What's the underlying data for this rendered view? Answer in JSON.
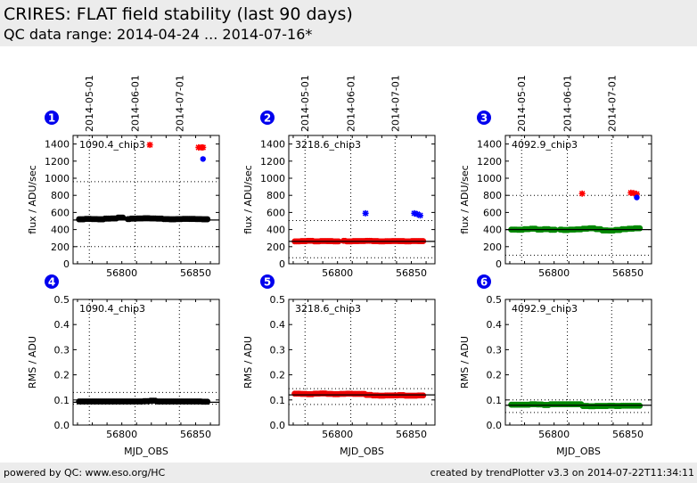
{
  "header": {
    "title": "CRIRES: FLAT field stability (last 90 days)",
    "subtitle": "QC data range: 2014-04-24 ... 2014-07-16*"
  },
  "footer": {
    "left": "powered by QC: www.eso.org/HC",
    "right": "created by trendPlotter v3.3 on 2014-07-22T11:34:11"
  },
  "colors": {
    "badge": "#0000ee",
    "black_series": "#000000",
    "red_series": "#ee0000",
    "green_series": "#008800",
    "outlier_red": "#ff0000",
    "outlier_blue": "#0000ff"
  },
  "chart_data": [
    {
      "id": 1,
      "type": "scatter",
      "label": "1090.4_chip3",
      "xlabel": "",
      "ylabel": "flux / ADU/sec",
      "xlim": [
        56767,
        56866
      ],
      "ylim": [
        0,
        1500
      ],
      "xticks": [
        56800,
        56850
      ],
      "yticks": [
        0,
        200,
        400,
        600,
        800,
        1000,
        1200,
        1400
      ],
      "date_ticks": [
        {
          "x": 56778,
          "label": "2014-05-01"
        },
        {
          "x": 56809,
          "label": "2014-06-01"
        },
        {
          "x": 56839,
          "label": "2014-07-01"
        }
      ],
      "color": "#000000",
      "series_x": [
        56771,
        56858
      ],
      "series_y": [
        520,
        525,
        522,
        520,
        528,
        530,
        540,
        522,
        528,
        530,
        532,
        530,
        528,
        522,
        520,
        522,
        525,
        524,
        522,
        520
      ],
      "reference": 512,
      "limits": [
        200,
        960
      ],
      "outliers": [
        {
          "x": 56819,
          "y": 1390,
          "marker": "star",
          "color": "#ff0000"
        },
        {
          "x": 56852,
          "y": 1360,
          "marker": "star",
          "color": "#ff0000"
        },
        {
          "x": 56854,
          "y": 1360,
          "marker": "star",
          "color": "#ff0000"
        },
        {
          "x": 56855,
          "y": 1360,
          "marker": "star",
          "color": "#ff0000"
        },
        {
          "x": 56855,
          "y": 1225,
          "marker": "dot",
          "color": "#0000ff"
        }
      ]
    },
    {
      "id": 2,
      "type": "scatter",
      "label": "3218.6_chip3",
      "xlabel": "",
      "ylabel": "flux / ADU/sec",
      "xlim": [
        56767,
        56866
      ],
      "ylim": [
        0,
        1500
      ],
      "xticks": [
        56800,
        56850
      ],
      "yticks": [
        0,
        200,
        400,
        600,
        800,
        1000,
        1200,
        1400
      ],
      "date_ticks": [
        {
          "x": 56778,
          "label": "2014-05-01"
        },
        {
          "x": 56809,
          "label": "2014-06-01"
        },
        {
          "x": 56839,
          "label": "2014-07-01"
        }
      ],
      "color": "#ee0000",
      "series_x": [
        56771,
        56858
      ],
      "series_y": [
        262,
        265,
        268,
        262,
        266,
        265,
        262,
        268,
        262,
        265,
        266,
        268,
        265,
        262,
        264,
        266,
        265,
        262,
        266,
        265
      ],
      "reference": 262,
      "limits": [
        70,
        505
      ],
      "outliers": [
        {
          "x": 56819,
          "y": 590,
          "marker": "star",
          "color": "#0000ff"
        },
        {
          "x": 56852,
          "y": 590,
          "marker": "star",
          "color": "#0000ff"
        },
        {
          "x": 56854,
          "y": 580,
          "marker": "star",
          "color": "#0000ff"
        },
        {
          "x": 56856,
          "y": 565,
          "marker": "star",
          "color": "#0000ff"
        }
      ]
    },
    {
      "id": 3,
      "type": "scatter",
      "label": "4092.9_chip3",
      "xlabel": "",
      "ylabel": "flux / ADU/sec",
      "xlim": [
        56767,
        56866
      ],
      "ylim": [
        0,
        1500
      ],
      "xticks": [
        56800,
        56850
      ],
      "yticks": [
        0,
        200,
        400,
        600,
        800,
        1000,
        1200,
        1400
      ],
      "date_ticks": [
        {
          "x": 56778,
          "label": "2014-05-01"
        },
        {
          "x": 56809,
          "label": "2014-06-01"
        },
        {
          "x": 56839,
          "label": "2014-07-01"
        }
      ],
      "color": "#008800",
      "series_x": [
        56771,
        56858
      ],
      "series_y": [
        400,
        398,
        405,
        410,
        400,
        405,
        398,
        400,
        395,
        400,
        402,
        410,
        415,
        405,
        390,
        388,
        395,
        405,
        410,
        415
      ],
      "reference": 400,
      "limits": [
        100,
        800
      ],
      "outliers": [
        {
          "x": 56819,
          "y": 820,
          "marker": "star",
          "color": "#ff0000"
        },
        {
          "x": 56852,
          "y": 830,
          "marker": "star",
          "color": "#ff0000"
        },
        {
          "x": 56854,
          "y": 825,
          "marker": "star",
          "color": "#ff0000"
        },
        {
          "x": 56856,
          "y": 815,
          "marker": "star",
          "color": "#ff0000"
        },
        {
          "x": 56856,
          "y": 775,
          "marker": "dot",
          "color": "#0000ff"
        }
      ]
    },
    {
      "id": 4,
      "type": "scatter",
      "label": "1090.4_chip3",
      "xlabel": "MJD_OBS",
      "ylabel": "RMS / ADU",
      "xlim": [
        56767,
        56866
      ],
      "ylim": [
        0,
        0.5
      ],
      "xticks": [
        56800,
        56850
      ],
      "yticks": [
        0.0,
        0.1,
        0.2,
        0.3,
        0.4,
        0.5
      ],
      "date_ticks": [
        {
          "x": 56778,
          "label": ""
        },
        {
          "x": 56809,
          "label": ""
        },
        {
          "x": 56839,
          "label": ""
        }
      ],
      "color": "#000000",
      "series_x": [
        56771,
        56858
      ],
      "series_y": [
        0.094,
        0.094,
        0.094,
        0.094,
        0.094,
        0.094,
        0.094,
        0.094,
        0.094,
        0.094,
        0.095,
        0.097,
        0.094,
        0.094,
        0.094,
        0.094,
        0.094,
        0.094,
        0.094,
        0.093
      ],
      "reference": 0.091,
      "limits": [
        0.083,
        0.13
      ],
      "outliers": []
    },
    {
      "id": 5,
      "type": "scatter",
      "label": "3218.6_chip3",
      "xlabel": "MJD_OBS",
      "ylabel": "RMS / ADU",
      "xlim": [
        56767,
        56866
      ],
      "ylim": [
        0,
        0.5
      ],
      "xticks": [
        56800,
        56850
      ],
      "yticks": [
        0.0,
        0.1,
        0.2,
        0.3,
        0.4,
        0.5
      ],
      "date_ticks": [
        {
          "x": 56778,
          "label": ""
        },
        {
          "x": 56809,
          "label": ""
        },
        {
          "x": 56839,
          "label": ""
        }
      ],
      "color": "#ee0000",
      "series_x": [
        56771,
        56858
      ],
      "series_y": [
        0.125,
        0.124,
        0.123,
        0.125,
        0.126,
        0.124,
        0.123,
        0.124,
        0.125,
        0.124,
        0.124,
        0.12,
        0.118,
        0.117,
        0.118,
        0.118,
        0.119,
        0.117,
        0.117,
        0.118
      ],
      "reference": 0.12,
      "limits": [
        0.082,
        0.145
      ],
      "outliers": []
    },
    {
      "id": 6,
      "type": "scatter",
      "label": "4092.9_chip3",
      "xlabel": "MJD_OBS",
      "ylabel": "RMS / ADU",
      "xlim": [
        56767,
        56866
      ],
      "ylim": [
        0,
        0.5
      ],
      "xticks": [
        56800,
        56850
      ],
      "yticks": [
        0.0,
        0.1,
        0.2,
        0.3,
        0.4,
        0.5
      ],
      "date_ticks": [
        {
          "x": 56778,
          "label": ""
        },
        {
          "x": 56809,
          "label": ""
        },
        {
          "x": 56839,
          "label": ""
        }
      ],
      "color": "#008800",
      "series_x": [
        56771,
        56858
      ],
      "series_y": [
        0.081,
        0.081,
        0.081,
        0.083,
        0.082,
        0.08,
        0.083,
        0.083,
        0.083,
        0.083,
        0.083,
        0.076,
        0.075,
        0.076,
        0.076,
        0.077,
        0.076,
        0.077,
        0.077,
        0.077
      ],
      "reference": 0.079,
      "limits": [
        0.05,
        0.1
      ],
      "outliers": []
    }
  ]
}
